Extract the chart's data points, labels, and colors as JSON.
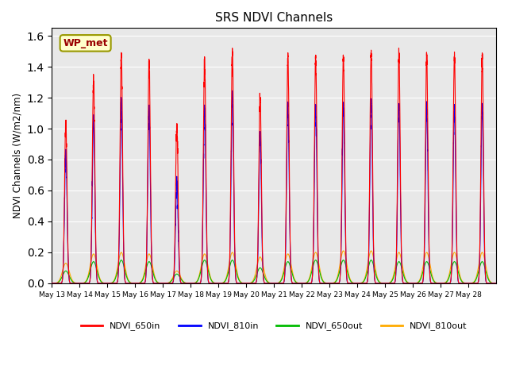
{
  "title": "SRS NDVI Channels",
  "ylabel": "NDVI Channels (W/m2/nm)",
  "xlabel": "",
  "annotation": "WP_met",
  "ylim": [
    0,
    1.65
  ],
  "yticks": [
    0.0,
    0.2,
    0.4,
    0.6,
    0.8,
    1.0,
    1.2,
    1.4,
    1.6
  ],
  "colors": {
    "NDVI_650in": "#ff0000",
    "NDVI_810in": "#0000ff",
    "NDVI_650out": "#00bb00",
    "NDVI_810out": "#ffaa00"
  },
  "bg_color": "#e8e8e8",
  "peak_650in": [
    1.03,
    1.32,
    1.48,
    1.44,
    1.03,
    1.43,
    1.5,
    1.22,
    1.46,
    1.45,
    1.46,
    1.5,
    1.49,
    1.48,
    1.47,
    1.47
  ],
  "peak_810in": [
    0.85,
    1.07,
    1.17,
    1.13,
    0.65,
    1.12,
    1.2,
    0.97,
    1.15,
    1.15,
    1.16,
    1.19,
    1.16,
    1.14,
    1.14,
    1.14
  ],
  "peak_650out": [
    0.08,
    0.14,
    0.15,
    0.14,
    0.06,
    0.15,
    0.15,
    0.1,
    0.14,
    0.15,
    0.15,
    0.15,
    0.14,
    0.14,
    0.14,
    0.14
  ],
  "peak_810out": [
    0.13,
    0.19,
    0.2,
    0.19,
    0.08,
    0.19,
    0.2,
    0.17,
    0.19,
    0.2,
    0.21,
    0.21,
    0.2,
    0.2,
    0.2,
    0.2
  ],
  "xstart": 13,
  "xend": 29,
  "day_ticks": [
    13,
    14,
    15,
    16,
    17,
    18,
    19,
    20,
    21,
    22,
    23,
    24,
    25,
    26,
    27,
    28
  ],
  "day_labels": [
    "May 13",
    "May 14",
    "May 15",
    "May 16",
    "May 17",
    "May 18",
    "May 19",
    "May 20",
    "May 21",
    "May 22",
    "May 23",
    "May 24",
    "May 25",
    "May 26",
    "May 27",
    "May 28"
  ]
}
